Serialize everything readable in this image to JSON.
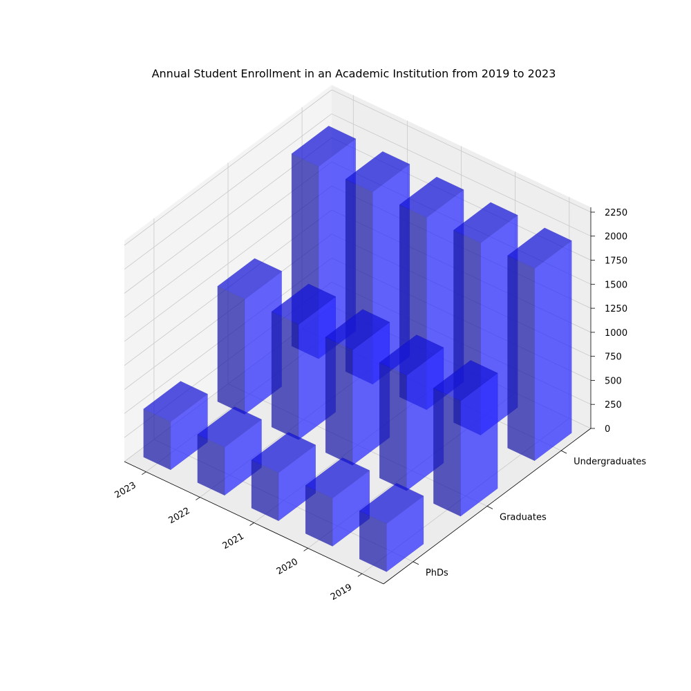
{
  "chart_data": {
    "type": "bar3d",
    "title": "Annual Student Enrollment in an Academic Institution from 2019 to 2023",
    "xlabel": "",
    "ylabel": "",
    "zlabel": "",
    "x_categories": [
      "2019",
      "2020",
      "2021",
      "2022",
      "2023"
    ],
    "y_categories": [
      "PhDs",
      "Graduates",
      "Undergraduates"
    ],
    "series": [
      {
        "name": "PhDs",
        "values": [
          500,
          500,
          500,
          500,
          500
        ]
      },
      {
        "name": "Graduates",
        "values": [
          1200,
          1200,
          1200,
          1200,
          1200
        ]
      },
      {
        "name": "Undergraduates",
        "values": [
          2000,
          2000,
          2000,
          2000,
          2000
        ]
      }
    ],
    "z_ticks": [
      0,
      250,
      500,
      750,
      1000,
      1250,
      1500,
      1750,
      2000,
      2250
    ],
    "zlim": [
      0,
      2300
    ],
    "grid": true,
    "bar_color": "#0000ff",
    "pane_color": "#f2f2f2"
  }
}
